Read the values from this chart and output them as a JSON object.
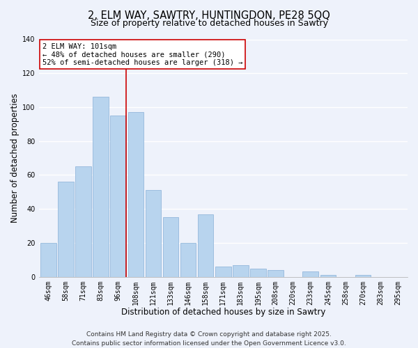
{
  "title": "2, ELM WAY, SAWTRY, HUNTINGDON, PE28 5QQ",
  "subtitle": "Size of property relative to detached houses in Sawtry",
  "xlabel": "Distribution of detached houses by size in Sawtry",
  "ylabel": "Number of detached properties",
  "categories": [
    "46sqm",
    "58sqm",
    "71sqm",
    "83sqm",
    "96sqm",
    "108sqm",
    "121sqm",
    "133sqm",
    "146sqm",
    "158sqm",
    "171sqm",
    "183sqm",
    "195sqm",
    "208sqm",
    "220sqm",
    "233sqm",
    "245sqm",
    "258sqm",
    "270sqm",
    "283sqm",
    "295sqm"
  ],
  "values": [
    20,
    56,
    65,
    106,
    95,
    97,
    51,
    35,
    20,
    37,
    6,
    7,
    5,
    4,
    0,
    3,
    1,
    0,
    1,
    0,
    0
  ],
  "bar_color": "#b8d4ee",
  "bar_edge_color": "#94b8dc",
  "highlight_index": 4,
  "highlight_line_color": "#cc0000",
  "ylim": [
    0,
    140
  ],
  "yticks": [
    0,
    20,
    40,
    60,
    80,
    100,
    120,
    140
  ],
  "annotation_text": "2 ELM WAY: 101sqm\n← 48% of detached houses are smaller (290)\n52% of semi-detached houses are larger (318) →",
  "annotation_box_color": "#ffffff",
  "annotation_box_edge": "#cc0000",
  "footer1": "Contains HM Land Registry data © Crown copyright and database right 2025.",
  "footer2": "Contains public sector information licensed under the Open Government Licence v3.0.",
  "background_color": "#eef2fb",
  "grid_color": "#ffffff",
  "title_fontsize": 10.5,
  "subtitle_fontsize": 9,
  "axis_label_fontsize": 8.5,
  "tick_fontsize": 7,
  "footer_fontsize": 6.5,
  "annotation_fontsize": 7.5
}
